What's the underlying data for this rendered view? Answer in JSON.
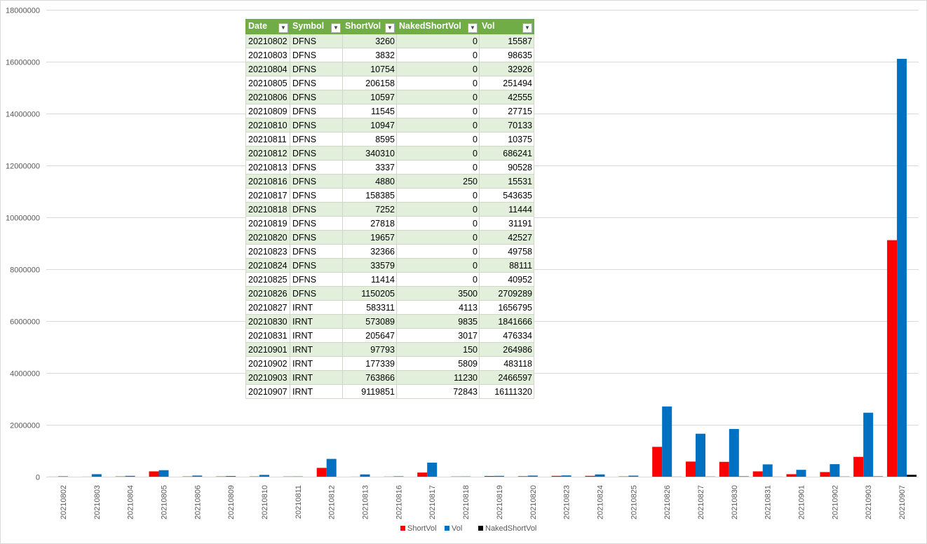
{
  "chart_data": {
    "type": "bar",
    "title": "",
    "xlabel": "",
    "ylabel": "",
    "ylim": [
      0,
      18000000
    ],
    "yticks": [
      0,
      2000000,
      4000000,
      6000000,
      8000000,
      10000000,
      12000000,
      14000000,
      16000000,
      18000000
    ],
    "ytick_labels": [
      "0",
      "2000000",
      "4000000",
      "6000000",
      "8000000",
      "10000000",
      "12000000",
      "14000000",
      "16000000",
      "18000000"
    ],
    "grid": true,
    "legend_position": "bottom",
    "categories": [
      "20210802",
      "20210803",
      "20210804",
      "20210805",
      "20210806",
      "20210809",
      "20210810",
      "20210811",
      "20210812",
      "20210813",
      "20210816",
      "20210817",
      "20210818",
      "20210819",
      "20210820",
      "20210823",
      "20210824",
      "20210825",
      "20210826",
      "20210827",
      "20210830",
      "20210831",
      "20210901",
      "20210902",
      "20210903",
      "20210907"
    ],
    "series": [
      {
        "name": "ShortVol",
        "color": "#ff0000",
        "values": [
          3260,
          3832,
          10754,
          206158,
          10597,
          11545,
          10947,
          8595,
          340310,
          3337,
          4880,
          158385,
          7252,
          27818,
          19657,
          32366,
          33579,
          11414,
          1150205,
          583311,
          573089,
          205647,
          97793,
          177339,
          763866,
          9119851
        ]
      },
      {
        "name": "Vol",
        "color": "#0070c0",
        "values": [
          15587,
          98635,
          32926,
          251494,
          42555,
          27715,
          70133,
          10375,
          686241,
          90528,
          15531,
          543635,
          11444,
          31191,
          42527,
          49758,
          88111,
          40952,
          2709289,
          1656795,
          1841666,
          476334,
          264986,
          483118,
          2466597,
          16111320
        ]
      },
      {
        "name": "NakedShortVol",
        "color": "#000000",
        "values": [
          0,
          0,
          0,
          0,
          0,
          0,
          0,
          0,
          0,
          0,
          250,
          0,
          0,
          0,
          0,
          0,
          0,
          0,
          3500,
          4113,
          9835,
          3017,
          150,
          5809,
          11230,
          72843
        ]
      }
    ]
  },
  "table": {
    "headers": [
      "Date",
      "Symbol",
      "ShortVol",
      "NakedShortVol",
      "Vol"
    ],
    "rows": [
      [
        "20210802",
        "DFNS",
        "3260",
        "0",
        "15587"
      ],
      [
        "20210803",
        "DFNS",
        "3832",
        "0",
        "98635"
      ],
      [
        "20210804",
        "DFNS",
        "10754",
        "0",
        "32926"
      ],
      [
        "20210805",
        "DFNS",
        "206158",
        "0",
        "251494"
      ],
      [
        "20210806",
        "DFNS",
        "10597",
        "0",
        "42555"
      ],
      [
        "20210809",
        "DFNS",
        "11545",
        "0",
        "27715"
      ],
      [
        "20210810",
        "DFNS",
        "10947",
        "0",
        "70133"
      ],
      [
        "20210811",
        "DFNS",
        "8595",
        "0",
        "10375"
      ],
      [
        "20210812",
        "DFNS",
        "340310",
        "0",
        "686241"
      ],
      [
        "20210813",
        "DFNS",
        "3337",
        "0",
        "90528"
      ],
      [
        "20210816",
        "DFNS",
        "4880",
        "250",
        "15531"
      ],
      [
        "20210817",
        "DFNS",
        "158385",
        "0",
        "543635"
      ],
      [
        "20210818",
        "DFNS",
        "7252",
        "0",
        "11444"
      ],
      [
        "20210819",
        "DFNS",
        "27818",
        "0",
        "31191"
      ],
      [
        "20210820",
        "DFNS",
        "19657",
        "0",
        "42527"
      ],
      [
        "20210823",
        "DFNS",
        "32366",
        "0",
        "49758"
      ],
      [
        "20210824",
        "DFNS",
        "33579",
        "0",
        "88111"
      ],
      [
        "20210825",
        "DFNS",
        "11414",
        "0",
        "40952"
      ],
      [
        "20210826",
        "DFNS",
        "1150205",
        "3500",
        "2709289"
      ],
      [
        "20210827",
        "IRNT",
        "583311",
        "4113",
        "1656795"
      ],
      [
        "20210830",
        "IRNT",
        "573089",
        "9835",
        "1841666"
      ],
      [
        "20210831",
        "IRNT",
        "205647",
        "3017",
        "476334"
      ],
      [
        "20210901",
        "IRNT",
        "97793",
        "150",
        "264986"
      ],
      [
        "20210902",
        "IRNT",
        "177339",
        "5809",
        "483118"
      ],
      [
        "20210903",
        "IRNT",
        "763866",
        "11230",
        "2466597"
      ],
      [
        "20210907",
        "IRNT",
        "9119851",
        "72843",
        "16111320"
      ]
    ]
  }
}
